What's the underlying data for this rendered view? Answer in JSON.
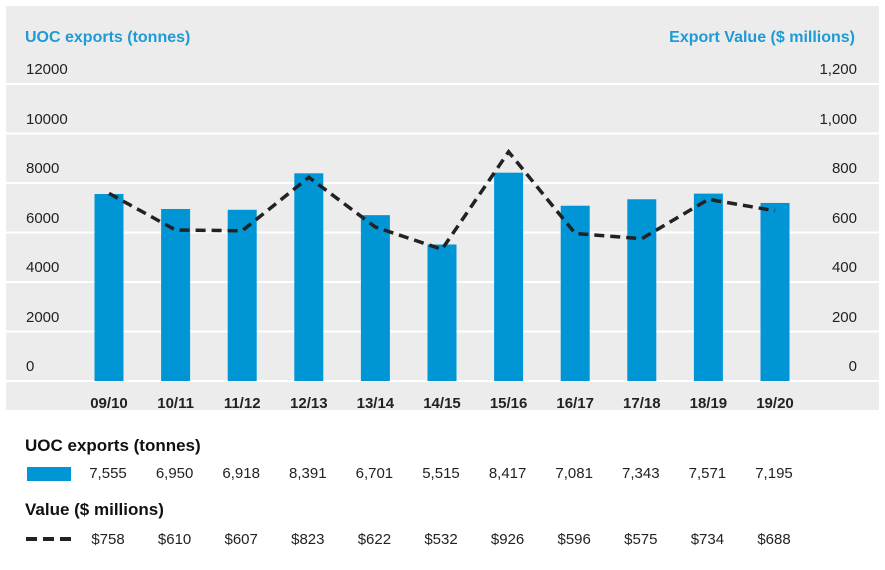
{
  "chart_data": {
    "type": "bar+line",
    "categories": [
      "09/10",
      "10/11",
      "11/12",
      "12/13",
      "13/14",
      "14/15",
      "15/16",
      "16/17",
      "17/18",
      "18/19",
      "19/20"
    ],
    "series": [
      {
        "name": "UOC exports (tonnes)",
        "type": "bar",
        "axis": "left",
        "values": [
          7555,
          6950,
          6918,
          8391,
          6701,
          5515,
          8417,
          7081,
          7343,
          7571,
          7195
        ],
        "labels": [
          "7,555",
          "6,950",
          "6,918",
          "8,391",
          "6,701",
          "5,515",
          "8,417",
          "7,081",
          "7,343",
          "7,571",
          "7,195"
        ]
      },
      {
        "name": "Value ($ millions)",
        "type": "line",
        "style": "dashed",
        "axis": "right",
        "values": [
          758,
          610,
          607,
          823,
          622,
          532,
          926,
          596,
          575,
          734,
          688
        ],
        "labels": [
          "$758",
          "$610",
          "$607",
          "$823",
          "$622",
          "$532",
          "$926",
          "$596",
          "$575",
          "$734",
          "$688"
        ]
      }
    ],
    "y_left": {
      "label": "UOC exports (tonnes)",
      "ticks": [
        "0",
        "2000",
        "4000",
        "6000",
        "8000",
        "10000",
        "12000"
      ],
      "range": [
        0,
        12000
      ]
    },
    "y_right": {
      "label": "Export Value ($ millions)",
      "ticks": [
        "0",
        "200",
        "400",
        "600",
        "800",
        "1,000",
        "1,200"
      ],
      "range": [
        0,
        1200
      ]
    },
    "colors": {
      "bar": "#0096d6",
      "line": "#222222",
      "title": "#1e9ad6"
    },
    "table_titles": {
      "bars": "UOC exports (tonnes)",
      "line": "Value ($ millions)"
    }
  }
}
